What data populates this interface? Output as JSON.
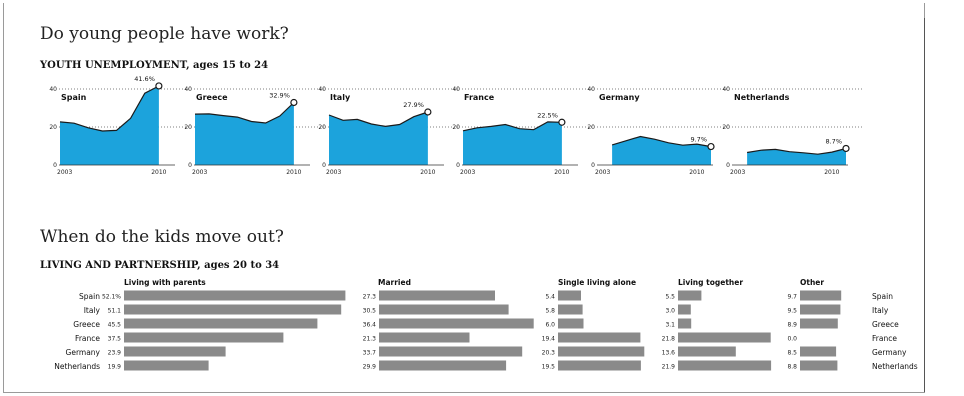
{
  "section1": {
    "title": "Do young people have work?",
    "subtitle": "YOUTH UNEMPLOYMENT, ages 15 to 24"
  },
  "section2": {
    "title": "When do the kids move out?",
    "subtitle": "LIVING AND PARTNERSHIP, ages 20 to 34"
  },
  "colors": {
    "area": "#1ca3dc",
    "bar": "#8a8a8a",
    "line": "#1a1a1a"
  },
  "chart_data": [
    {
      "type": "area",
      "title": "YOUTH UNEMPLOYMENT, ages 15 to 24",
      "x": [
        2003,
        2004,
        2005,
        2006,
        2007,
        2008,
        2009,
        2010,
        2011
      ],
      "yticks": [
        0,
        20,
        40
      ],
      "ylim": [
        0,
        40
      ],
      "xtick_labels": [
        "2003",
        "2010"
      ],
      "grid": true,
      "series": [
        {
          "name": "Spain",
          "values": [
            22.7,
            22.0,
            19.6,
            17.9,
            18.2,
            24.6,
            37.8,
            41.6,
            null
          ],
          "end_label": "41.6%"
        },
        {
          "name": "Greece",
          "values": [
            26.8,
            26.9,
            26.0,
            25.2,
            22.9,
            22.1,
            25.8,
            32.9,
            null
          ],
          "end_label": "32.9%"
        },
        {
          "name": "Italy",
          "values": [
            26.3,
            23.5,
            24.0,
            21.6,
            20.3,
            21.3,
            25.4,
            27.9,
            null
          ],
          "end_label": "27.9%"
        },
        {
          "name": "France",
          "values": [
            18.0,
            19.6,
            20.3,
            21.3,
            19.1,
            18.6,
            22.7,
            22.5,
            null
          ],
          "end_label": "22.5%"
        },
        {
          "name": "Germany",
          "values": [
            null,
            10.6,
            12.8,
            15.0,
            13.6,
            11.7,
            10.4,
            11.0,
            9.7
          ],
          "end_label": "9.7%"
        },
        {
          "name": "Netherlands",
          "values": [
            null,
            6.6,
            7.8,
            8.2,
            7.0,
            6.4,
            5.7,
            6.8,
            8.7
          ],
          "end_label": "8.7%"
        }
      ]
    },
    {
      "type": "bar",
      "title": "LIVING AND PARTNERSHIP, ages 20 to 34",
      "categories": [
        "Spain",
        "Italy",
        "Greece",
        "France",
        "Germany",
        "Netherlands"
      ],
      "series": [
        {
          "name": "Living with parents",
          "values": [
            52.1,
            51.1,
            45.5,
            37.5,
            23.9,
            19.9
          ],
          "labels": [
            "52.1%",
            "51.1",
            "45.5",
            "37.5",
            "23.9",
            "19.9"
          ]
        },
        {
          "name": "Married",
          "values": [
            27.3,
            30.5,
            36.4,
            21.3,
            33.7,
            29.9
          ],
          "labels": [
            "27.3",
            "30.5",
            "36.4",
            "21.3",
            "33.7",
            "29.9"
          ]
        },
        {
          "name": "Single living alone",
          "values": [
            5.4,
            5.8,
            6.0,
            19.4,
            20.3,
            19.5
          ],
          "labels": [
            "5.4",
            "5.8",
            "6.0",
            "19.4",
            "20.3",
            "19.5"
          ]
        },
        {
          "name": "Living together",
          "values": [
            5.5,
            3.0,
            3.1,
            21.8,
            13.6,
            21.9
          ],
          "labels": [
            "5.5",
            "3.0",
            "3.1",
            "21.8",
            "13.6",
            "21.9"
          ]
        },
        {
          "name": "Other",
          "values": [
            9.7,
            9.5,
            8.9,
            0.0,
            8.5,
            8.8
          ],
          "labels": [
            "9.7",
            "9.5",
            "8.9",
            "0.0",
            "8.5",
            "8.8"
          ]
        }
      ]
    }
  ]
}
